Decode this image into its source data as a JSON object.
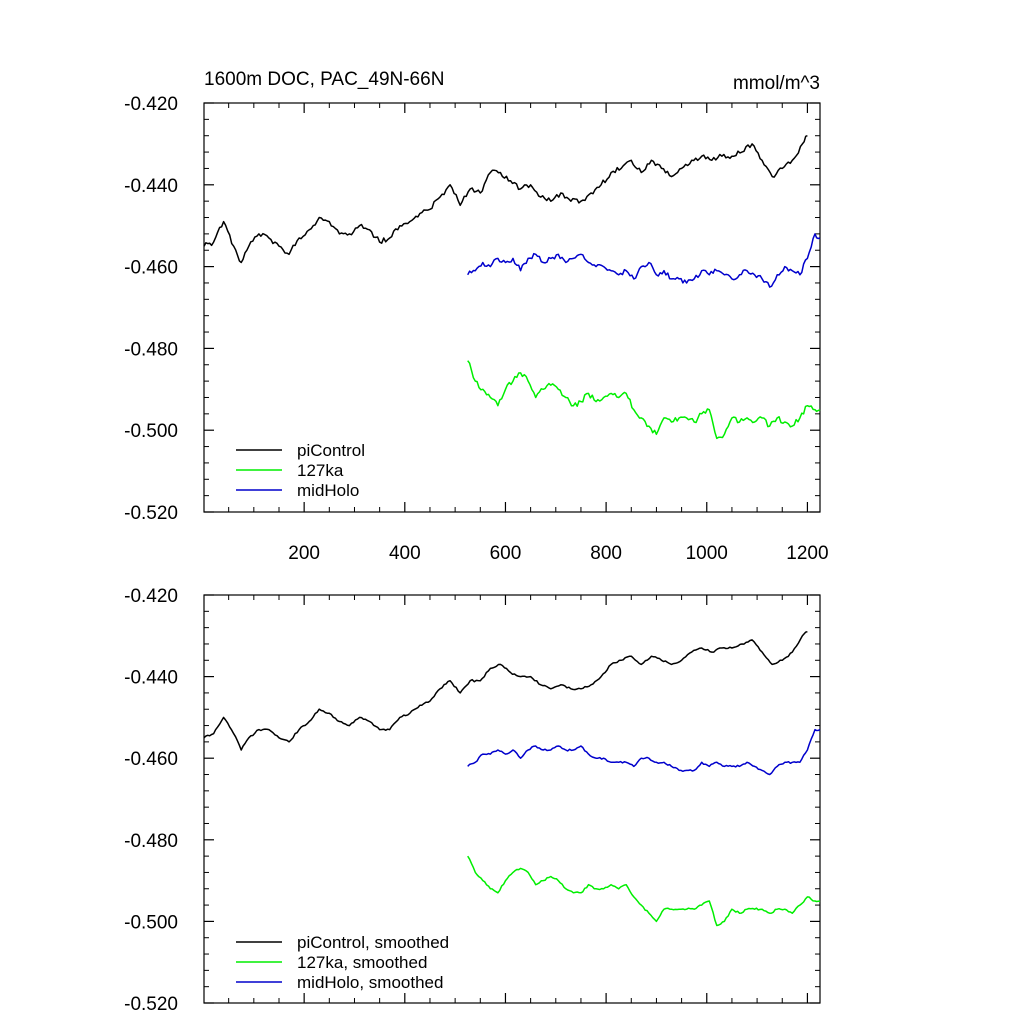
{
  "chart_data": [
    {
      "type": "line",
      "title": "1600m DOC, PAC_49N-66N",
      "units": "mmol/m^3",
      "xlim": [
        1,
        1225
      ],
      "ylim": [
        -0.52,
        -0.42
      ],
      "xticks": [
        200,
        400,
        600,
        800,
        1000,
        1200
      ],
      "xtick_labels": [
        "200",
        "400",
        "600",
        "800",
        "1000",
        "1200"
      ],
      "yticks": [
        -0.52,
        -0.5,
        -0.48,
        -0.46,
        -0.44,
        -0.42
      ],
      "ytick_labels": [
        "-0.520",
        "-0.500",
        "-0.480",
        "-0.460",
        "-0.440",
        "-0.420"
      ],
      "legend_position": "bottom-left",
      "grid": false,
      "series": [
        {
          "name": "piControl",
          "color": "#000000",
          "x": [
            1,
            20,
            40,
            60,
            75,
            90,
            110,
            130,
            150,
            170,
            190,
            210,
            230,
            250,
            270,
            290,
            310,
            330,
            350,
            370,
            390,
            410,
            430,
            450,
            470,
            490,
            510,
            530,
            550,
            570,
            590,
            610,
            630,
            650,
            670,
            690,
            710,
            730,
            750,
            770,
            790,
            810,
            830,
            850,
            870,
            890,
            910,
            930,
            950,
            970,
            990,
            1010,
            1030,
            1050,
            1070,
            1090,
            1110,
            1130,
            1150,
            1170,
            1190,
            1200
          ],
          "y": [
            -0.455,
            -0.454,
            -0.449,
            -0.455,
            -0.459,
            -0.455,
            -0.452,
            -0.453,
            -0.455,
            -0.457,
            -0.453,
            -0.451,
            -0.448,
            -0.449,
            -0.452,
            -0.452,
            -0.45,
            -0.451,
            -0.454,
            -0.453,
            -0.45,
            -0.449,
            -0.447,
            -0.446,
            -0.443,
            -0.44,
            -0.445,
            -0.441,
            -0.442,
            -0.437,
            -0.437,
            -0.439,
            -0.441,
            -0.44,
            -0.443,
            -0.444,
            -0.442,
            -0.444,
            -0.444,
            -0.442,
            -0.44,
            -0.437,
            -0.436,
            -0.434,
            -0.437,
            -0.434,
            -0.436,
            -0.438,
            -0.436,
            -0.434,
            -0.433,
            -0.434,
            -0.433,
            -0.433,
            -0.432,
            -0.43,
            -0.434,
            -0.438,
            -0.436,
            -0.434,
            -0.43,
            -0.428
          ]
        },
        {
          "name": "127ka",
          "color": "#00ee00",
          "x": [
            525,
            540,
            555,
            570,
            585,
            600,
            615,
            630,
            645,
            660,
            675,
            690,
            705,
            720,
            735,
            750,
            765,
            780,
            795,
            810,
            825,
            840,
            855,
            870,
            885,
            900,
            915,
            930,
            945,
            960,
            975,
            990,
            1005,
            1020,
            1035,
            1050,
            1065,
            1080,
            1095,
            1110,
            1125,
            1140,
            1155,
            1170,
            1185,
            1200,
            1215,
            1225
          ],
          "y": [
            -0.483,
            -0.488,
            -0.49,
            -0.492,
            -0.494,
            -0.49,
            -0.488,
            -0.486,
            -0.488,
            -0.492,
            -0.49,
            -0.489,
            -0.49,
            -0.492,
            -0.494,
            -0.493,
            -0.491,
            -0.493,
            -0.492,
            -0.491,
            -0.492,
            -0.491,
            -0.495,
            -0.497,
            -0.499,
            -0.501,
            -0.497,
            -0.498,
            -0.497,
            -0.497,
            -0.498,
            -0.496,
            -0.495,
            -0.502,
            -0.501,
            -0.497,
            -0.498,
            -0.497,
            -0.498,
            -0.497,
            -0.499,
            -0.497,
            -0.498,
            -0.499,
            -0.497,
            -0.494,
            -0.495,
            -0.495
          ]
        },
        {
          "name": "midHolo",
          "color": "#0000cc",
          "x": [
            525,
            540,
            555,
            570,
            585,
            600,
            615,
            630,
            645,
            660,
            675,
            690,
            705,
            720,
            735,
            750,
            765,
            780,
            795,
            810,
            825,
            840,
            855,
            870,
            885,
            900,
            915,
            930,
            945,
            960,
            975,
            990,
            1005,
            1020,
            1035,
            1050,
            1065,
            1080,
            1095,
            1110,
            1125,
            1140,
            1155,
            1170,
            1185,
            1200,
            1215,
            1225
          ],
          "y": [
            -0.462,
            -0.461,
            -0.459,
            -0.46,
            -0.458,
            -0.459,
            -0.458,
            -0.461,
            -0.458,
            -0.457,
            -0.459,
            -0.458,
            -0.457,
            -0.459,
            -0.458,
            -0.457,
            -0.459,
            -0.46,
            -0.46,
            -0.461,
            -0.462,
            -0.461,
            -0.463,
            -0.46,
            -0.459,
            -0.462,
            -0.461,
            -0.463,
            -0.463,
            -0.464,
            -0.463,
            -0.461,
            -0.462,
            -0.461,
            -0.462,
            -0.463,
            -0.462,
            -0.461,
            -0.462,
            -0.463,
            -0.465,
            -0.462,
            -0.46,
            -0.461,
            -0.462,
            -0.458,
            -0.452,
            -0.453
          ]
        }
      ]
    },
    {
      "type": "line",
      "title": "",
      "xlim": [
        1,
        1225
      ],
      "ylim": [
        -0.52,
        -0.42
      ],
      "xticks": [
        200,
        400,
        600,
        800,
        1000,
        1200
      ],
      "yticks": [
        -0.52,
        -0.5,
        -0.48,
        -0.46,
        -0.44,
        -0.42
      ],
      "ytick_labels": [
        "-0.520",
        "-0.500",
        "-0.480",
        "-0.460",
        "-0.440",
        "-0.420"
      ],
      "legend_position": "bottom-left",
      "grid": false,
      "series": [
        {
          "name": "piControl, smoothed",
          "color": "#000000",
          "x": [
            1,
            20,
            40,
            60,
            75,
            90,
            110,
            130,
            150,
            170,
            190,
            210,
            230,
            250,
            270,
            290,
            310,
            330,
            350,
            370,
            390,
            410,
            430,
            450,
            470,
            490,
            510,
            530,
            550,
            570,
            590,
            610,
            630,
            650,
            670,
            690,
            710,
            730,
            750,
            770,
            790,
            810,
            830,
            850,
            870,
            890,
            910,
            930,
            950,
            970,
            990,
            1010,
            1030,
            1050,
            1070,
            1090,
            1110,
            1130,
            1150,
            1170,
            1190,
            1200
          ],
          "y": [
            -0.455,
            -0.454,
            -0.45,
            -0.454,
            -0.458,
            -0.455,
            -0.453,
            -0.453,
            -0.455,
            -0.456,
            -0.453,
            -0.451,
            -0.448,
            -0.449,
            -0.451,
            -0.452,
            -0.45,
            -0.451,
            -0.453,
            -0.453,
            -0.45,
            -0.449,
            -0.447,
            -0.446,
            -0.443,
            -0.441,
            -0.444,
            -0.441,
            -0.441,
            -0.438,
            -0.437,
            -0.439,
            -0.44,
            -0.44,
            -0.442,
            -0.443,
            -0.442,
            -0.443,
            -0.443,
            -0.442,
            -0.44,
            -0.437,
            -0.436,
            -0.435,
            -0.437,
            -0.435,
            -0.436,
            -0.437,
            -0.436,
            -0.434,
            -0.433,
            -0.434,
            -0.433,
            -0.433,
            -0.432,
            -0.431,
            -0.434,
            -0.437,
            -0.436,
            -0.434,
            -0.43,
            -0.429
          ]
        },
        {
          "name": "127ka, smoothed",
          "color": "#00ee00",
          "x": [
            525,
            540,
            555,
            570,
            585,
            600,
            615,
            630,
            645,
            660,
            675,
            690,
            705,
            720,
            735,
            750,
            765,
            780,
            795,
            810,
            825,
            840,
            855,
            870,
            885,
            900,
            915,
            930,
            945,
            960,
            975,
            990,
            1005,
            1020,
            1035,
            1050,
            1065,
            1080,
            1095,
            1110,
            1125,
            1140,
            1155,
            1170,
            1185,
            1200,
            1215,
            1225
          ],
          "y": [
            -0.484,
            -0.488,
            -0.49,
            -0.492,
            -0.493,
            -0.49,
            -0.488,
            -0.487,
            -0.488,
            -0.491,
            -0.49,
            -0.489,
            -0.49,
            -0.492,
            -0.493,
            -0.493,
            -0.491,
            -0.492,
            -0.492,
            -0.491,
            -0.492,
            -0.491,
            -0.494,
            -0.496,
            -0.498,
            -0.5,
            -0.497,
            -0.497,
            -0.497,
            -0.497,
            -0.497,
            -0.496,
            -0.495,
            -0.501,
            -0.5,
            -0.497,
            -0.498,
            -0.497,
            -0.497,
            -0.497,
            -0.498,
            -0.497,
            -0.497,
            -0.498,
            -0.496,
            -0.494,
            -0.495,
            -0.495
          ]
        },
        {
          "name": "midHolo, smoothed",
          "color": "#0000cc",
          "x": [
            525,
            540,
            555,
            570,
            585,
            600,
            615,
            630,
            645,
            660,
            675,
            690,
            705,
            720,
            735,
            750,
            765,
            780,
            795,
            810,
            825,
            840,
            855,
            870,
            885,
            900,
            915,
            930,
            945,
            960,
            975,
            990,
            1005,
            1020,
            1035,
            1050,
            1065,
            1080,
            1095,
            1110,
            1125,
            1140,
            1155,
            1170,
            1185,
            1200,
            1215,
            1225
          ],
          "y": [
            -0.462,
            -0.461,
            -0.459,
            -0.459,
            -0.458,
            -0.459,
            -0.458,
            -0.46,
            -0.458,
            -0.457,
            -0.458,
            -0.458,
            -0.457,
            -0.458,
            -0.458,
            -0.457,
            -0.459,
            -0.46,
            -0.46,
            -0.461,
            -0.461,
            -0.461,
            -0.462,
            -0.46,
            -0.46,
            -0.461,
            -0.461,
            -0.462,
            -0.463,
            -0.463,
            -0.463,
            -0.461,
            -0.462,
            -0.461,
            -0.462,
            -0.462,
            -0.462,
            -0.461,
            -0.462,
            -0.463,
            -0.464,
            -0.462,
            -0.461,
            -0.461,
            -0.461,
            -0.458,
            -0.453,
            -0.453
          ]
        }
      ]
    }
  ]
}
